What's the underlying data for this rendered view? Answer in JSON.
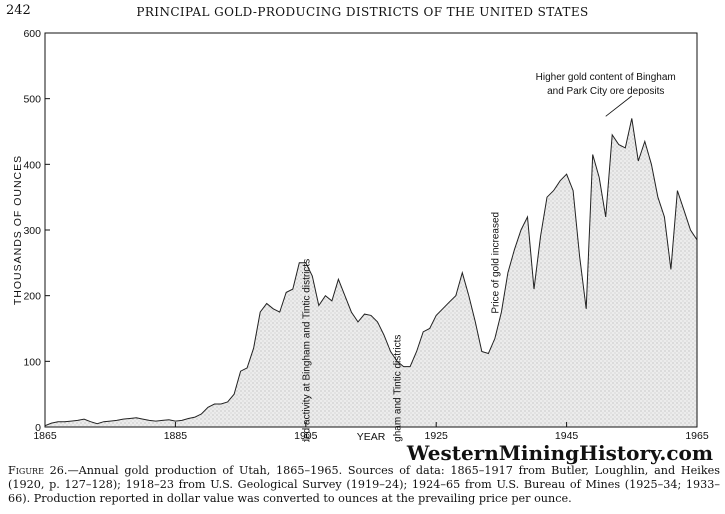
{
  "page": {
    "number": "242",
    "running_head": "PRINCIPAL GOLD-PRODUCING DISTRICTS OF THE UNITED STATES"
  },
  "watermark": "WesternMiningHistory.com",
  "caption": {
    "label": "Figure 26.",
    "text": "—Annual gold production of Utah, 1865–1965. Sources of data: 1865–1917 from Butler, Loughlin, and Heikes (1920, p. 127–128); 1918–23 from U.S. Geological Survey (1919–24); 1924–65 from U.S. Bureau of Mines (1925–34; 1933–66). Production reported in dollar value was converted to ounces at the prevailing price per ounce."
  },
  "chart_data": {
    "type": "area",
    "title": "",
    "xlabel": "YEAR",
    "ylabel": "THOUSANDS OF OUNCES",
    "xlim": [
      1865,
      1965
    ],
    "ylim": [
      0,
      600
    ],
    "x_ticks": [
      1865,
      1885,
      1905,
      1925,
      1945,
      1965
    ],
    "y_ticks": [
      0,
      100,
      200,
      300,
      400,
      500,
      600
    ],
    "grid": false,
    "fill": "stippled light gray",
    "series": [
      {
        "x": [
          1865,
          1866,
          1867,
          1868,
          1869,
          1870,
          1871,
          1872,
          1873,
          1874,
          1875,
          1876,
          1877,
          1878,
          1879,
          1880,
          1881,
          1882,
          1883,
          1884,
          1885,
          1886,
          1887,
          1888,
          1889,
          1890,
          1891,
          1892,
          1893,
          1894,
          1895,
          1896,
          1897,
          1898,
          1899,
          1900,
          1901,
          1902,
          1903,
          1904,
          1905,
          1906,
          1907,
          1908,
          1909,
          1910,
          1911,
          1912,
          1913,
          1914,
          1915,
          1916,
          1917,
          1918,
          1919,
          1920,
          1921,
          1922,
          1923,
          1924,
          1925,
          1926,
          1927,
          1928,
          1929,
          1930,
          1931,
          1932,
          1933,
          1934,
          1935,
          1936,
          1937,
          1938,
          1939,
          1940,
          1941,
          1942,
          1943,
          1944,
          1945,
          1946,
          1947,
          1948,
          1949,
          1950,
          1951,
          1952,
          1953,
          1954,
          1955,
          1956,
          1957,
          1958,
          1959,
          1960,
          1961,
          1962,
          1963,
          1964,
          1965
        ],
        "values": [
          2,
          6,
          8,
          8,
          9,
          10,
          12,
          8,
          5,
          8,
          9,
          10,
          12,
          13,
          14,
          12,
          10,
          9,
          10,
          11,
          9,
          10,
          13,
          15,
          20,
          30,
          35,
          35,
          38,
          50,
          85,
          90,
          120,
          175,
          188,
          180,
          175,
          205,
          210,
          250,
          250,
          230,
          185,
          200,
          192,
          225,
          200,
          175,
          160,
          172,
          170,
          160,
          140,
          115,
          100,
          92,
          92,
          115,
          145,
          150,
          170,
          180,
          190,
          200,
          235,
          200,
          160,
          115,
          112,
          135,
          175,
          235,
          270,
          300,
          320,
          210,
          290,
          350,
          360,
          375,
          385,
          360,
          260,
          180,
          415,
          380,
          320,
          445,
          430,
          425,
          470,
          405,
          435,
          400,
          350,
          320,
          240,
          360,
          330,
          300,
          285
        ]
      }
    ],
    "annotations": [
      {
        "text": "Expanded activity at Bingham and Tintic districts",
        "x": 1905,
        "y": 250
      },
      {
        "text": "Decline at Bingham and Tintic districts",
        "x": 1919,
        "y": 95
      },
      {
        "text": "Price of gold increased",
        "x": 1934,
        "y": 320
      },
      {
        "text": "Higher gold content of Bingham",
        "x": 1951,
        "y": 470
      },
      {
        "text": "and Park City ore deposits",
        "x": 1951,
        "y": 470
      }
    ]
  }
}
